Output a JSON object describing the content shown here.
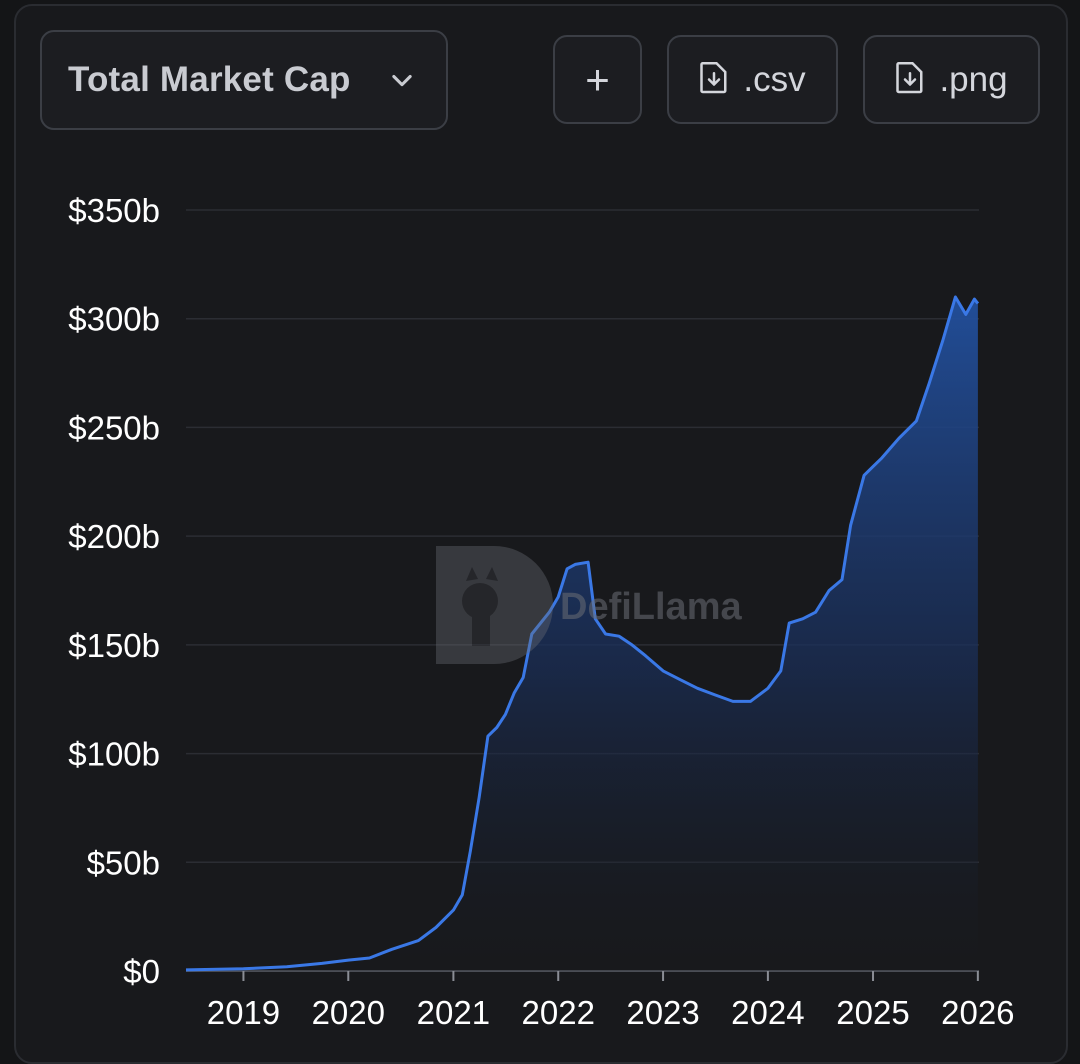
{
  "header": {
    "metric_selector_label": "Total Market Cap",
    "add_label": "+",
    "csv_label": ".csv",
    "png_label": ".png"
  },
  "watermark": {
    "text": "DefiLlama"
  },
  "colors": {
    "line": "#3a78e6",
    "fill_top": "#22509e",
    "grid": "#2b2d33",
    "axis_text": "#ffffff",
    "background": "#18191c"
  },
  "icons": {
    "dropdown": "chevron-down-icon",
    "add": "plus-icon",
    "csv": "file-download-icon",
    "png": "file-download-icon"
  },
  "chart_data": {
    "type": "area",
    "title": "",
    "xlabel": "",
    "ylabel": "",
    "grid": true,
    "ylim": [
      0,
      350
    ],
    "xlim": [
      "2018-06-15",
      "2026-01-05"
    ],
    "y_ticks": [
      0,
      50,
      100,
      150,
      200,
      250,
      300,
      350
    ],
    "y_tick_labels": [
      "$0",
      "$50b",
      "$100b",
      "$150b",
      "$200b",
      "$250b",
      "$300b",
      "$350b"
    ],
    "x_ticks": [
      "2019-01-01",
      "2020-01-01",
      "2021-01-01",
      "2022-01-01",
      "2023-01-01",
      "2024-01-01",
      "2025-01-01",
      "2026-01-01"
    ],
    "x_tick_labels": [
      "2019",
      "2020",
      "2021",
      "2022",
      "2023",
      "2024",
      "2025",
      "2026"
    ],
    "series": [
      {
        "values_unit": "billions USD",
        "points": [
          [
            "2018-06-15",
            0.5
          ],
          [
            "2019-01-01",
            1
          ],
          [
            "2019-06-01",
            2
          ],
          [
            "2019-10-01",
            3.5
          ],
          [
            "2020-01-01",
            5
          ],
          [
            "2020-03-15",
            6
          ],
          [
            "2020-06-01",
            10
          ],
          [
            "2020-09-01",
            14
          ],
          [
            "2020-11-01",
            20
          ],
          [
            "2021-01-01",
            28
          ],
          [
            "2021-02-01",
            35
          ],
          [
            "2021-03-01",
            55
          ],
          [
            "2021-04-01",
            80
          ],
          [
            "2021-05-01",
            108
          ],
          [
            "2021-06-01",
            112
          ],
          [
            "2021-07-01",
            118
          ],
          [
            "2021-08-01",
            128
          ],
          [
            "2021-09-01",
            135
          ],
          [
            "2021-10-01",
            155
          ],
          [
            "2021-12-01",
            165
          ],
          [
            "2022-01-01",
            172
          ],
          [
            "2022-02-01",
            185
          ],
          [
            "2022-03-01",
            187
          ],
          [
            "2022-04-15",
            188
          ],
          [
            "2022-05-10",
            162
          ],
          [
            "2022-06-15",
            155
          ],
          [
            "2022-08-01",
            154
          ],
          [
            "2022-09-15",
            150
          ],
          [
            "2022-11-01",
            145
          ],
          [
            "2023-01-01",
            138
          ],
          [
            "2023-03-01",
            134
          ],
          [
            "2023-05-01",
            130
          ],
          [
            "2023-07-01",
            127
          ],
          [
            "2023-09-01",
            124
          ],
          [
            "2023-11-01",
            124
          ],
          [
            "2024-01-01",
            130
          ],
          [
            "2024-02-15",
            138
          ],
          [
            "2024-03-15",
            160
          ],
          [
            "2024-05-01",
            162
          ],
          [
            "2024-06-15",
            165
          ],
          [
            "2024-08-01",
            175
          ],
          [
            "2024-09-15",
            180
          ],
          [
            "2024-10-15",
            205
          ],
          [
            "2024-12-01",
            228
          ],
          [
            "2025-01-01",
            232
          ],
          [
            "2025-02-01",
            236
          ],
          [
            "2025-04-01",
            245
          ],
          [
            "2025-06-01",
            253
          ],
          [
            "2025-07-15",
            270
          ],
          [
            "2025-09-01",
            290
          ],
          [
            "2025-10-15",
            310
          ],
          [
            "2025-11-20",
            302
          ],
          [
            "2025-12-20",
            309
          ],
          [
            "2026-01-01",
            307
          ]
        ]
      }
    ]
  }
}
